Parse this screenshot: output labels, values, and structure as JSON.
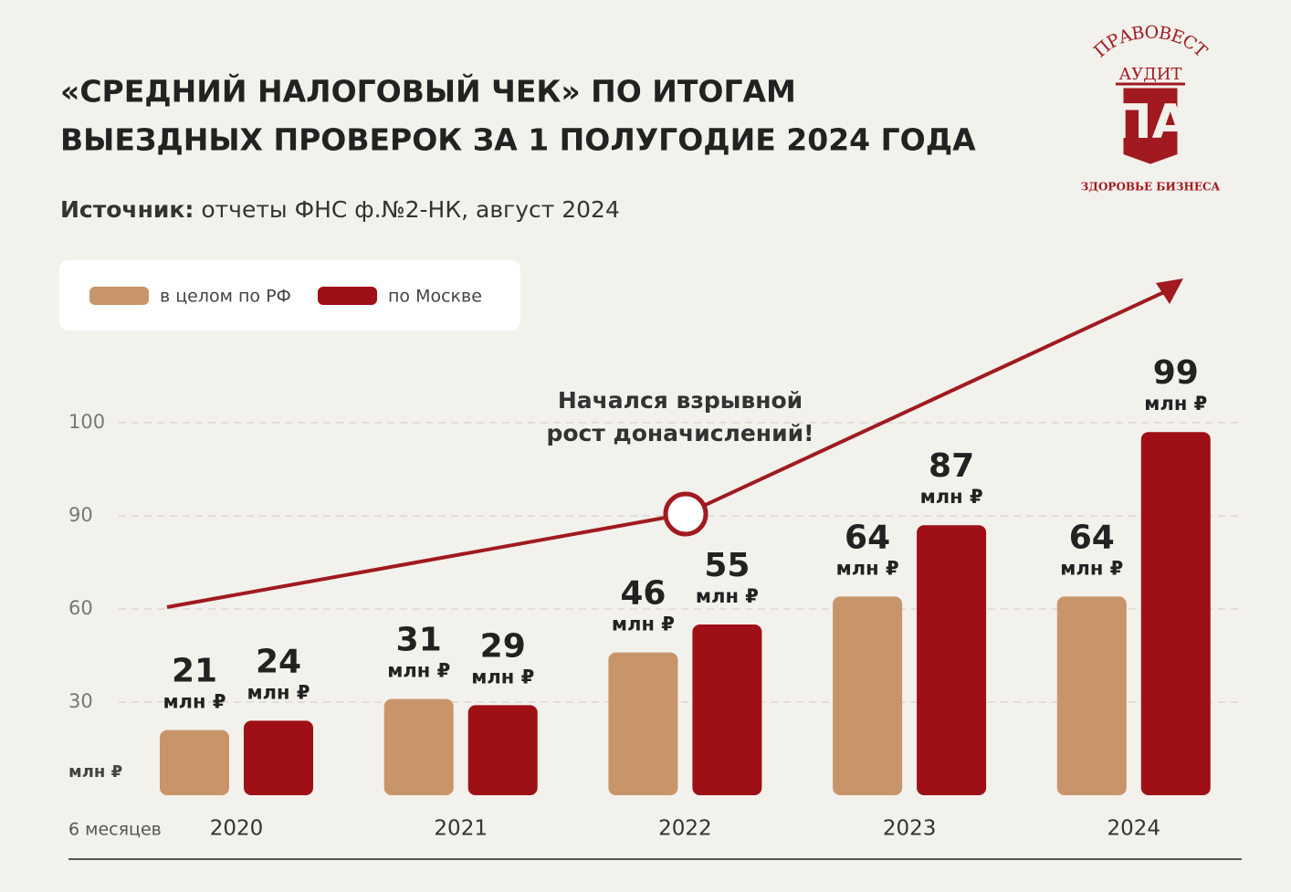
{
  "header": {
    "title_lines": [
      "«СРЕДНИЙ НАЛОГОВЫЙ ЧЕК» ПО ИТОГАМ",
      "ВЫЕЗДНЫХ ПРОВЕРОК ЗА 1 ПОЛУГОДИЕ 2024 ГОДА"
    ],
    "source_label": "Источник:",
    "source_text": "отчеты ФНС ф.№2-НК, август 2024"
  },
  "logo": {
    "arc_text": "ПРАВОВЕСТ",
    "sub_text": "АУДИТ",
    "monogram": "ПА",
    "tagline": "ЗДОРОВЬЕ БИЗНЕСА"
  },
  "chart_data": {
    "type": "bar",
    "categories": [
      "2020",
      "2021",
      "2022",
      "2023",
      "2024"
    ],
    "series": [
      {
        "name": "в целом по РФ",
        "color": "#c8956a",
        "values": [
          21,
          31,
          46,
          64,
          64
        ]
      },
      {
        "name": "по Москве",
        "color": "#9e1015",
        "values": [
          24,
          29,
          55,
          87,
          99
        ]
      }
    ],
    "unit": "млн ₽",
    "y_unit_label": "млн ₽",
    "x_axis_label": "6 месяцев",
    "ylim": [
      0,
      100
    ],
    "yticks": [
      30,
      60,
      90,
      100
    ],
    "grid": true,
    "legend": "top-left",
    "annotation": [
      "Начался взрывной",
      "рост доначислений!"
    ]
  }
}
